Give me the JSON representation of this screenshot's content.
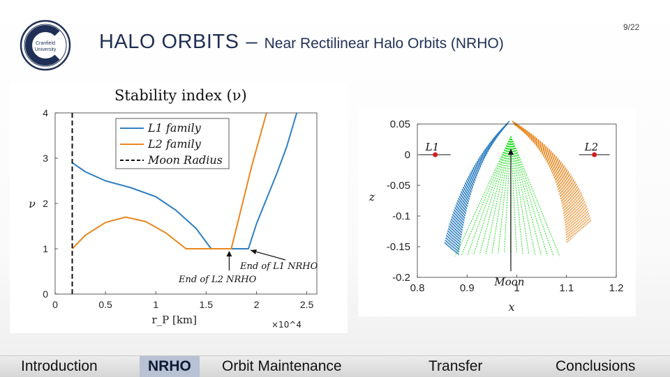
{
  "header": {
    "logo_text_line1": "Cranfield",
    "logo_text_line2": "University",
    "title_main": "HALO ORBITS",
    "title_dash": "–",
    "title_sub": "Near Rectilinear Halo Orbits (NRHO)",
    "page_number": "9/22"
  },
  "colors": {
    "l1_blue": "#2f7fc1",
    "l2_orange": "#e8871e",
    "moon_green": "#22dd22",
    "lagrange_red": "#d21f1f",
    "brand_navy": "#1f2f55"
  },
  "chart_data": [
    {
      "type": "line",
      "title": "Stability index (ν)",
      "xlabel": "r_P [km]",
      "ylabel": "ν",
      "x_multiplier": "×10^4",
      "xlim": [
        0,
        2.6
      ],
      "ylim": [
        0,
        4
      ],
      "xticks": [
        "0",
        "0.5",
        "1",
        "1.5",
        "2",
        "2.5"
      ],
      "yticks": [
        "0",
        "1",
        "2",
        "3",
        "4"
      ],
      "legend": {
        "position": "top-left",
        "entries": [
          "L1 family",
          "L2 family",
          "Moon Radius"
        ]
      },
      "series": [
        {
          "name": "L1 family",
          "x": [
            0.17,
            0.3,
            0.5,
            0.75,
            1.0,
            1.2,
            1.4,
            1.55,
            1.72,
            1.92,
            2.0,
            2.1,
            2.2,
            2.3,
            2.4
          ],
          "y": [
            2.9,
            2.7,
            2.5,
            2.35,
            2.15,
            1.85,
            1.45,
            1.0,
            1.0,
            1.0,
            1.55,
            2.1,
            2.65,
            3.25,
            4.0
          ]
        },
        {
          "name": "L2 family",
          "x": [
            0.17,
            0.3,
            0.5,
            0.7,
            0.9,
            1.1,
            1.3,
            1.55,
            1.75,
            1.85,
            1.95,
            2.05,
            2.1
          ],
          "y": [
            1.0,
            1.3,
            1.58,
            1.7,
            1.6,
            1.35,
            1.0,
            1.0,
            1.0,
            1.9,
            2.8,
            3.6,
            4.0
          ]
        },
        {
          "name": "Moon Radius",
          "x": [
            0.17,
            0.17
          ],
          "y": [
            0,
            4
          ]
        }
      ],
      "annotations": [
        {
          "text": "End of L1 NRHO",
          "x": 1.92,
          "y": 1.0
        },
        {
          "text": "End of L2 NRHO",
          "x": 1.75,
          "y": 1.0
        }
      ]
    },
    {
      "type": "scatter",
      "xlabel": "x",
      "ylabel": "z",
      "xlim": [
        0.8,
        1.2
      ],
      "ylim": [
        -0.2,
        0.05
      ],
      "xticks": [
        "0.8",
        "0.9",
        "1",
        "1.1",
        "1.2"
      ],
      "yticks": [
        "0.05",
        "0",
        "-0.05",
        "-0.1",
        "-0.15",
        "-0.2"
      ],
      "points": [
        {
          "name": "L1",
          "x": 0.836,
          "y": 0
        },
        {
          "name": "L2",
          "x": 1.156,
          "y": 0
        }
      ],
      "annotations": [
        {
          "text": "Moon",
          "x": 0.988,
          "y": -0.2
        }
      ],
      "families": [
        "L1 family",
        "L2 family",
        "Moon-near"
      ]
    }
  ],
  "nav": {
    "items": [
      {
        "label": "Introduction"
      },
      {
        "label": "NRHO"
      },
      {
        "label": "Orbit Maintenance"
      },
      {
        "label": "Transfer"
      },
      {
        "label": "Conclusions"
      }
    ]
  }
}
